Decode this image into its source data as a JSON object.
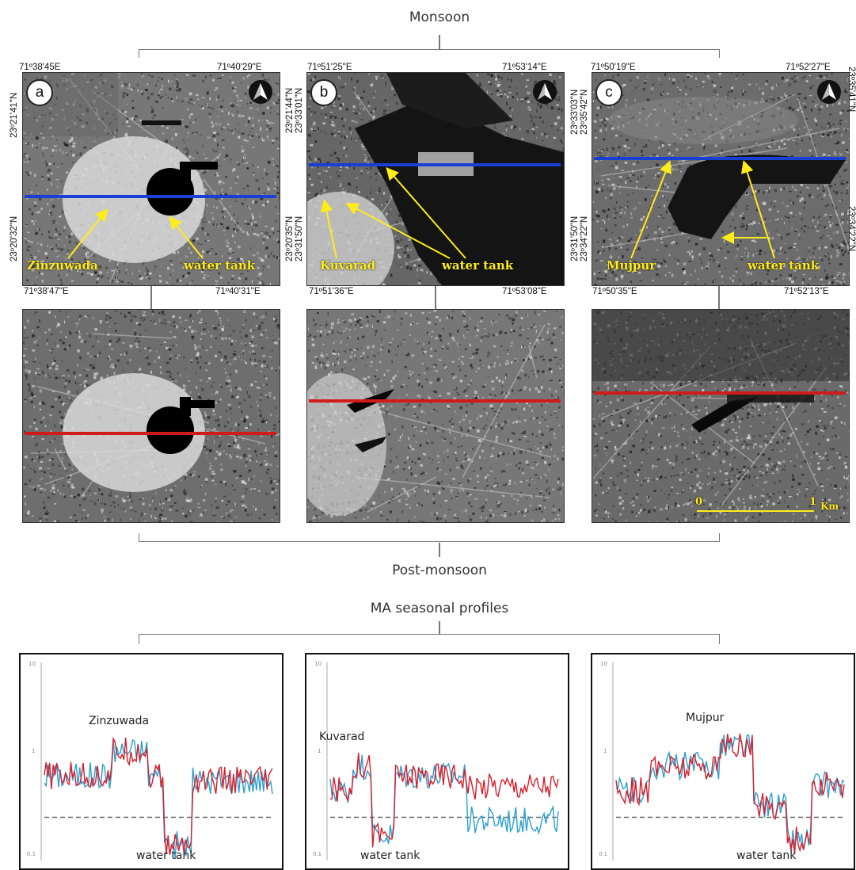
{
  "titles": {
    "monsoon": "Monsoon",
    "post_monsoon": "Post-monsoon",
    "profiles": "MA seasonal profiles"
  },
  "panels": [
    {
      "letter": "a",
      "top_coords": {
        "top_left": "71º38'45E",
        "top_right": "71º40'29\"E",
        "bottom_left": "71º38'47\"E",
        "bottom_right": "71º40'31\"E"
      },
      "lat_left": {
        "upper": "23º21'41\"N",
        "lower": "23º20'32\"N"
      },
      "labels": {
        "village": "Zinzuwada",
        "tank": "water tank"
      }
    },
    {
      "letter": "b",
      "top_coords": {
        "top_left": "71º51'25\"E",
        "top_right": "71º53'14\"E",
        "bottom_left": "71º51'36\"E",
        "bottom_right": "71º53'08\"E"
      },
      "lat_left": {
        "upper": "23º21'44\"N",
        "upper2": "23º33'01\"N",
        "lower": "23º20'35\"N",
        "lower2": "23º31'50\"N"
      },
      "labels": {
        "village": "Kuvarad",
        "tank": "water tank"
      }
    },
    {
      "letter": "c",
      "top_coords": {
        "top_left": "71º50'19\"E",
        "top_right": "71º52'27\"E",
        "bottom_left": "71º50'35\"E",
        "bottom_right": "71º52'13\"E"
      },
      "lat_left": {
        "upper": "23º33'03\"N",
        "upper2": "23º35'42\"N",
        "lower": "23º31'50\"N",
        "lower2": "23º34'22\"N"
      },
      "lat_right": {
        "upper": "23º35'41\"N",
        "lower": "23º34'22\"N"
      },
      "labels": {
        "village": "Mujpur",
        "tank": "water tank"
      }
    }
  ],
  "scale_bar": {
    "start": "0",
    "end": "1",
    "unit": "Km"
  },
  "profiles": [
    {
      "y_ticks": [
        "10",
        "1",
        "0.1"
      ],
      "label_top": "Zinzuwada",
      "label_bottom": "water tank"
    },
    {
      "y_ticks": [
        "10",
        "1",
        "0.1"
      ],
      "label_top": "Kuvarad",
      "label_bottom": "water tank"
    },
    {
      "y_ticks": [
        "10",
        "1",
        "0.1"
      ],
      "label_top": "Mujpur",
      "label_bottom": "water tank"
    }
  ],
  "colors": {
    "monsoon_line": "#1a3fd6",
    "post_line": "#d11a1a",
    "blue_series": "#2a9fd0",
    "red_series": "#d81e2a",
    "label": "#ffec1a"
  }
}
